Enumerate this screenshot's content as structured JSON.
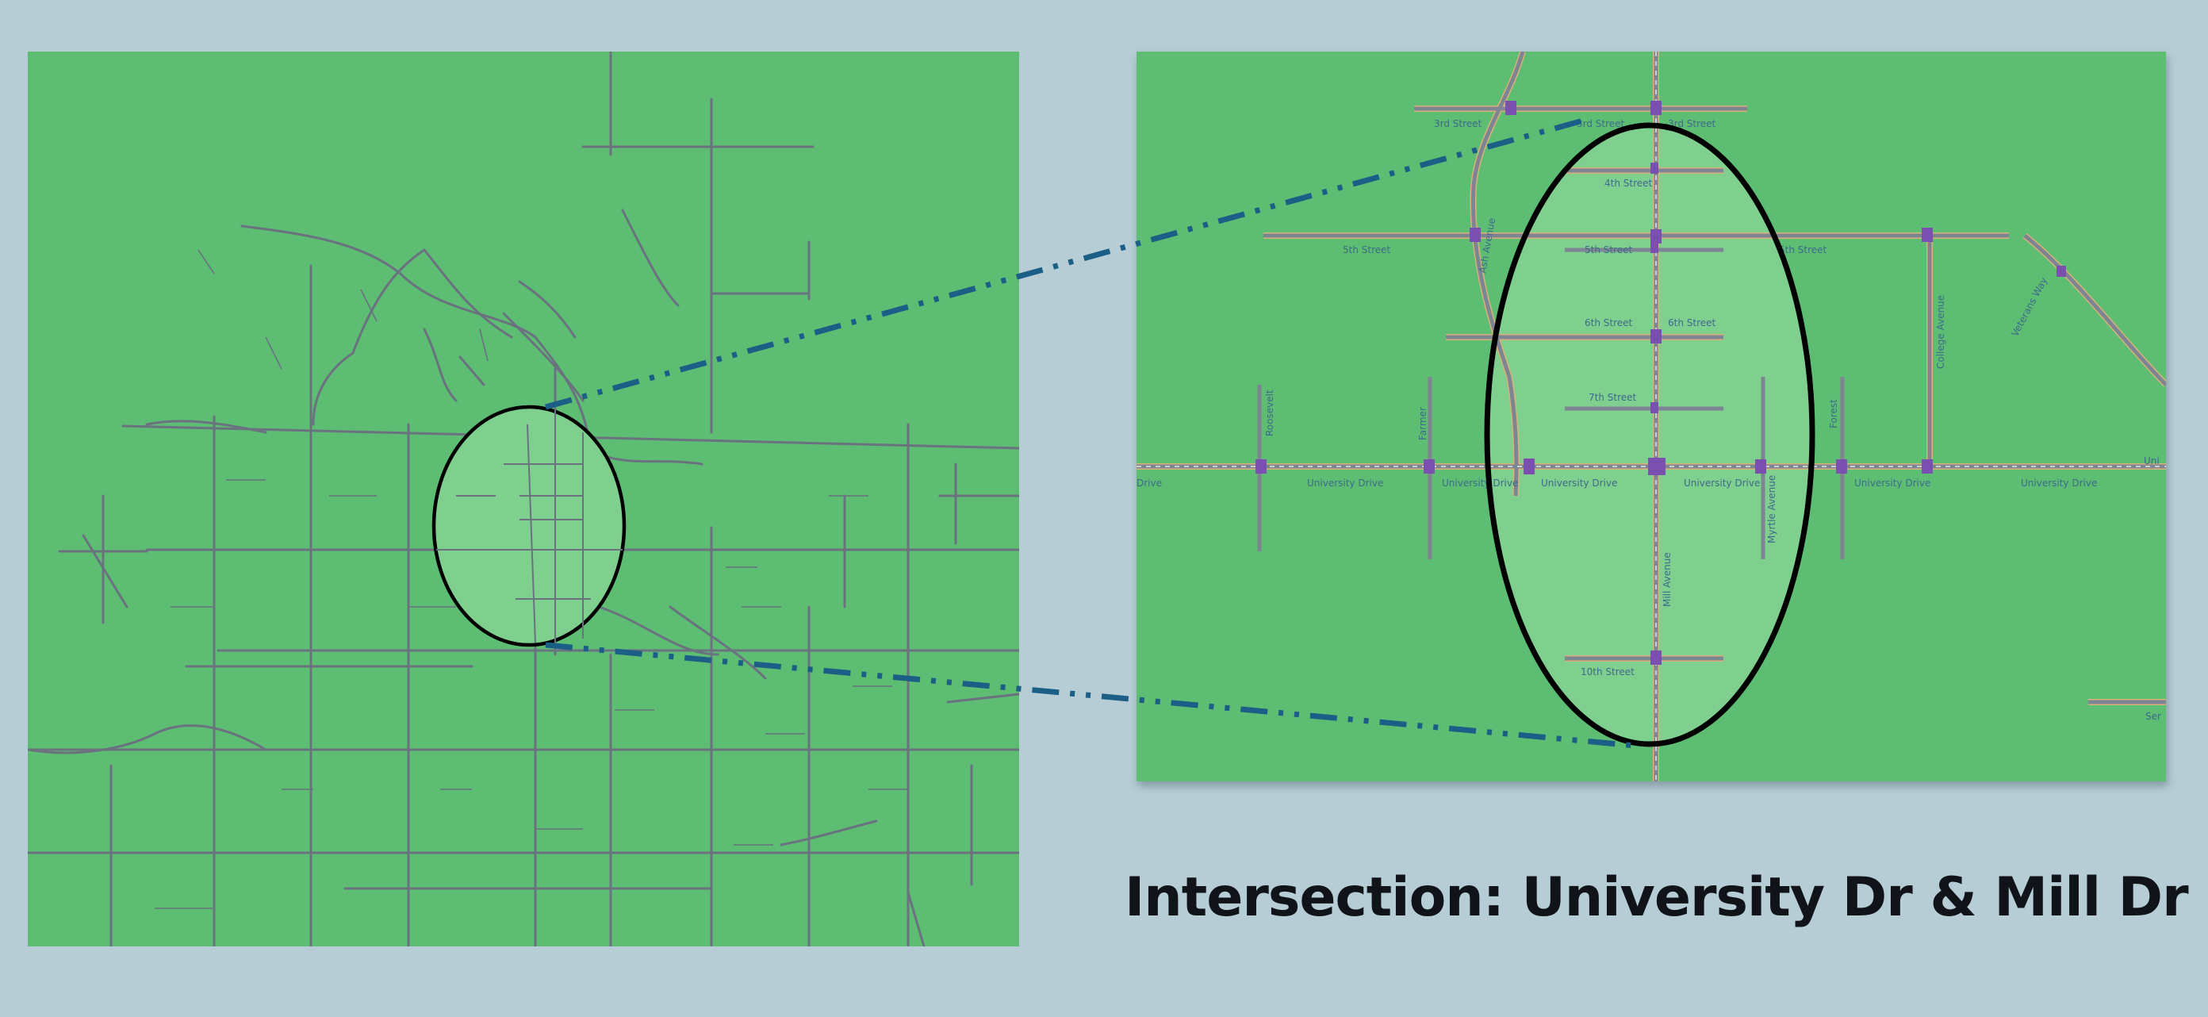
{
  "title": "Intersection: University Dr & Mill Dr",
  "colors": {
    "background": "#b6cdd6",
    "map_green": "#5dbd72",
    "highlight_green": "#7fcf8e",
    "road_gray": "#6a7280",
    "connector_blue": "#1c5f86",
    "ellipse_outline": "#000000",
    "signal_purple": "#7a4fb0",
    "road_edge_tan": "#d9b27a"
  },
  "overview_map": {
    "description_icon": "road-network-map-icon"
  },
  "detail_map": {
    "street_labels": {
      "third_street_left": "3rd Street",
      "third_street_mid": "3rd Street",
      "third_street_right": "3rd Street",
      "fourth_street": "4th Street",
      "fifth_street_left": "5th Street",
      "fifth_street_mid": "5th Street",
      "fifth_street_right": "5th Street",
      "sixth_street_left": "6th Street",
      "sixth_street_right": "6th Street",
      "seventh_street": "7th Street",
      "tenth_street": "10th Street",
      "university_drive_1": "University Drive",
      "university_drive_2": "University Drive",
      "university_drive_3": "University Drive",
      "university_drive_4": "University Drive",
      "university_drive_5": "University Drive",
      "university_drive_6": "University Drive",
      "university_drive_edge": "Drive",
      "university_drive_right_edge": "Uni",
      "mill_avenue": "Mill Avenue",
      "ash_avenue": "Ash Avenue",
      "myrtle_avenue": "Myrtle Avenue",
      "forest_avenue": "Forest",
      "college_avenue": "College Avenue",
      "farmer_avenue": "Farmer",
      "hardy_drive": "Roosevelt",
      "veterans_way": "Veterans Way",
      "rural_edge": "Ser"
    }
  }
}
